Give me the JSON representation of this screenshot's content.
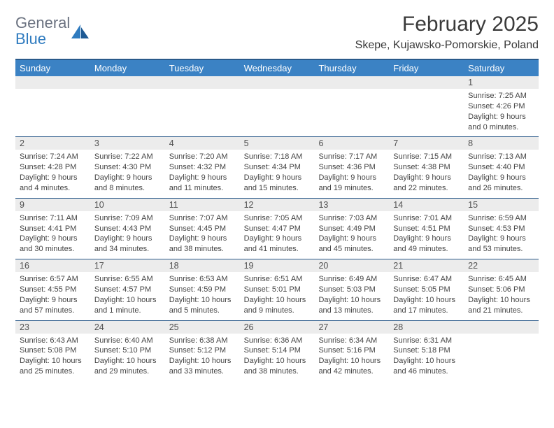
{
  "logo": {
    "general": "General",
    "blue": "Blue"
  },
  "title": {
    "month": "February 2025",
    "location": "Skepe, Kujawsko-Pomorskie, Poland"
  },
  "colors": {
    "header_bg": "#3b82c4",
    "header_border": "#2a5a8a",
    "daynum_bg": "#ececec",
    "text": "#3a3a3a",
    "logo_gray": "#6b7280",
    "logo_blue": "#2f7bbf"
  },
  "weekdays": [
    "Sunday",
    "Monday",
    "Tuesday",
    "Wednesday",
    "Thursday",
    "Friday",
    "Saturday"
  ],
  "weeks": [
    [
      {
        "n": "",
        "sunrise": "",
        "sunset": "",
        "daylight": ""
      },
      {
        "n": "",
        "sunrise": "",
        "sunset": "",
        "daylight": ""
      },
      {
        "n": "",
        "sunrise": "",
        "sunset": "",
        "daylight": ""
      },
      {
        "n": "",
        "sunrise": "",
        "sunset": "",
        "daylight": ""
      },
      {
        "n": "",
        "sunrise": "",
        "sunset": "",
        "daylight": ""
      },
      {
        "n": "",
        "sunrise": "",
        "sunset": "",
        "daylight": ""
      },
      {
        "n": "1",
        "sunrise": "Sunrise: 7:25 AM",
        "sunset": "Sunset: 4:26 PM",
        "daylight": "Daylight: 9 hours and 0 minutes."
      }
    ],
    [
      {
        "n": "2",
        "sunrise": "Sunrise: 7:24 AM",
        "sunset": "Sunset: 4:28 PM",
        "daylight": "Daylight: 9 hours and 4 minutes."
      },
      {
        "n": "3",
        "sunrise": "Sunrise: 7:22 AM",
        "sunset": "Sunset: 4:30 PM",
        "daylight": "Daylight: 9 hours and 8 minutes."
      },
      {
        "n": "4",
        "sunrise": "Sunrise: 7:20 AM",
        "sunset": "Sunset: 4:32 PM",
        "daylight": "Daylight: 9 hours and 11 minutes."
      },
      {
        "n": "5",
        "sunrise": "Sunrise: 7:18 AM",
        "sunset": "Sunset: 4:34 PM",
        "daylight": "Daylight: 9 hours and 15 minutes."
      },
      {
        "n": "6",
        "sunrise": "Sunrise: 7:17 AM",
        "sunset": "Sunset: 4:36 PM",
        "daylight": "Daylight: 9 hours and 19 minutes."
      },
      {
        "n": "7",
        "sunrise": "Sunrise: 7:15 AM",
        "sunset": "Sunset: 4:38 PM",
        "daylight": "Daylight: 9 hours and 22 minutes."
      },
      {
        "n": "8",
        "sunrise": "Sunrise: 7:13 AM",
        "sunset": "Sunset: 4:40 PM",
        "daylight": "Daylight: 9 hours and 26 minutes."
      }
    ],
    [
      {
        "n": "9",
        "sunrise": "Sunrise: 7:11 AM",
        "sunset": "Sunset: 4:41 PM",
        "daylight": "Daylight: 9 hours and 30 minutes."
      },
      {
        "n": "10",
        "sunrise": "Sunrise: 7:09 AM",
        "sunset": "Sunset: 4:43 PM",
        "daylight": "Daylight: 9 hours and 34 minutes."
      },
      {
        "n": "11",
        "sunrise": "Sunrise: 7:07 AM",
        "sunset": "Sunset: 4:45 PM",
        "daylight": "Daylight: 9 hours and 38 minutes."
      },
      {
        "n": "12",
        "sunrise": "Sunrise: 7:05 AM",
        "sunset": "Sunset: 4:47 PM",
        "daylight": "Daylight: 9 hours and 41 minutes."
      },
      {
        "n": "13",
        "sunrise": "Sunrise: 7:03 AM",
        "sunset": "Sunset: 4:49 PM",
        "daylight": "Daylight: 9 hours and 45 minutes."
      },
      {
        "n": "14",
        "sunrise": "Sunrise: 7:01 AM",
        "sunset": "Sunset: 4:51 PM",
        "daylight": "Daylight: 9 hours and 49 minutes."
      },
      {
        "n": "15",
        "sunrise": "Sunrise: 6:59 AM",
        "sunset": "Sunset: 4:53 PM",
        "daylight": "Daylight: 9 hours and 53 minutes."
      }
    ],
    [
      {
        "n": "16",
        "sunrise": "Sunrise: 6:57 AM",
        "sunset": "Sunset: 4:55 PM",
        "daylight": "Daylight: 9 hours and 57 minutes."
      },
      {
        "n": "17",
        "sunrise": "Sunrise: 6:55 AM",
        "sunset": "Sunset: 4:57 PM",
        "daylight": "Daylight: 10 hours and 1 minute."
      },
      {
        "n": "18",
        "sunrise": "Sunrise: 6:53 AM",
        "sunset": "Sunset: 4:59 PM",
        "daylight": "Daylight: 10 hours and 5 minutes."
      },
      {
        "n": "19",
        "sunrise": "Sunrise: 6:51 AM",
        "sunset": "Sunset: 5:01 PM",
        "daylight": "Daylight: 10 hours and 9 minutes."
      },
      {
        "n": "20",
        "sunrise": "Sunrise: 6:49 AM",
        "sunset": "Sunset: 5:03 PM",
        "daylight": "Daylight: 10 hours and 13 minutes."
      },
      {
        "n": "21",
        "sunrise": "Sunrise: 6:47 AM",
        "sunset": "Sunset: 5:05 PM",
        "daylight": "Daylight: 10 hours and 17 minutes."
      },
      {
        "n": "22",
        "sunrise": "Sunrise: 6:45 AM",
        "sunset": "Sunset: 5:06 PM",
        "daylight": "Daylight: 10 hours and 21 minutes."
      }
    ],
    [
      {
        "n": "23",
        "sunrise": "Sunrise: 6:43 AM",
        "sunset": "Sunset: 5:08 PM",
        "daylight": "Daylight: 10 hours and 25 minutes."
      },
      {
        "n": "24",
        "sunrise": "Sunrise: 6:40 AM",
        "sunset": "Sunset: 5:10 PM",
        "daylight": "Daylight: 10 hours and 29 minutes."
      },
      {
        "n": "25",
        "sunrise": "Sunrise: 6:38 AM",
        "sunset": "Sunset: 5:12 PM",
        "daylight": "Daylight: 10 hours and 33 minutes."
      },
      {
        "n": "26",
        "sunrise": "Sunrise: 6:36 AM",
        "sunset": "Sunset: 5:14 PM",
        "daylight": "Daylight: 10 hours and 38 minutes."
      },
      {
        "n": "27",
        "sunrise": "Sunrise: 6:34 AM",
        "sunset": "Sunset: 5:16 PM",
        "daylight": "Daylight: 10 hours and 42 minutes."
      },
      {
        "n": "28",
        "sunrise": "Sunrise: 6:31 AM",
        "sunset": "Sunset: 5:18 PM",
        "daylight": "Daylight: 10 hours and 46 minutes."
      },
      {
        "n": "",
        "sunrise": "",
        "sunset": "",
        "daylight": ""
      }
    ]
  ]
}
